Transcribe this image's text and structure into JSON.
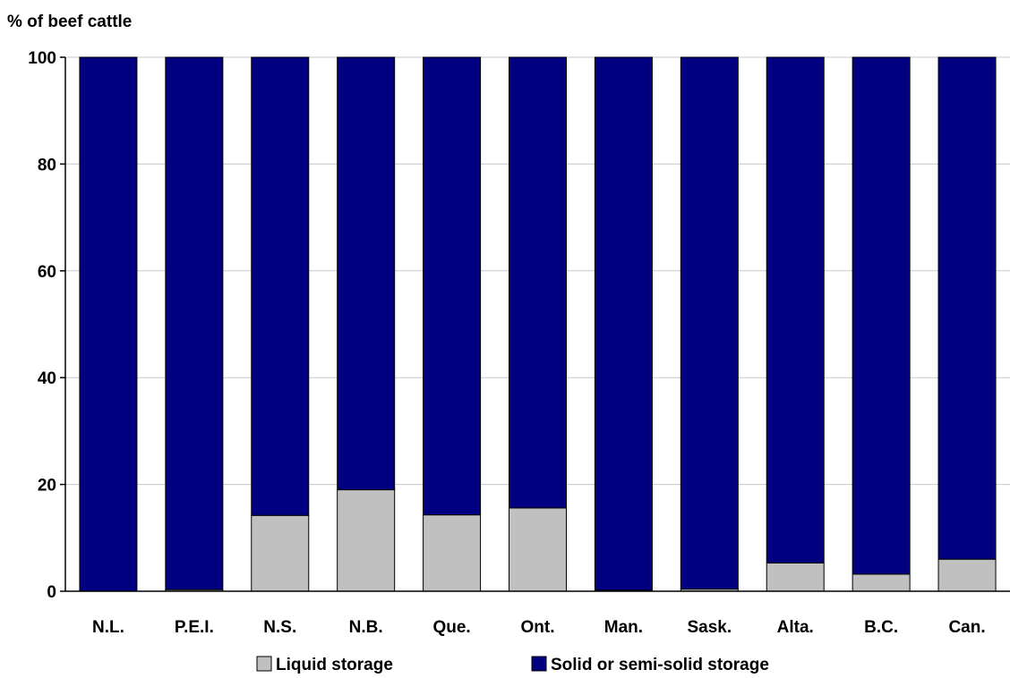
{
  "chart_data": {
    "type": "bar",
    "stacked": true,
    "ylabel": "% of beef cattle",
    "xlabel": "",
    "ylim": [
      0,
      100
    ],
    "yticks": [
      0,
      20,
      40,
      60,
      80,
      100
    ],
    "grid": true,
    "legend_position": "bottom",
    "categories": [
      "N.L.",
      "P.E.I.",
      "N.S.",
      "N.B.",
      "Que.",
      "Ont.",
      "Man.",
      "Sask.",
      "Alta.",
      "B.C.",
      "Can."
    ],
    "series": [
      {
        "name": "Liquid storage",
        "color": "#c0c0c0",
        "values": [
          0,
          0.3,
          14.2,
          19,
          14.3,
          15.6,
          0.2,
          0.4,
          5.3,
          3.2,
          6
        ]
      },
      {
        "name": "Solid or semi-solid storage",
        "color": "#000080",
        "values": [
          100,
          99.7,
          85.8,
          81,
          85.7,
          84.4,
          99.8,
          99.6,
          94.7,
          96.8,
          94
        ]
      }
    ]
  }
}
